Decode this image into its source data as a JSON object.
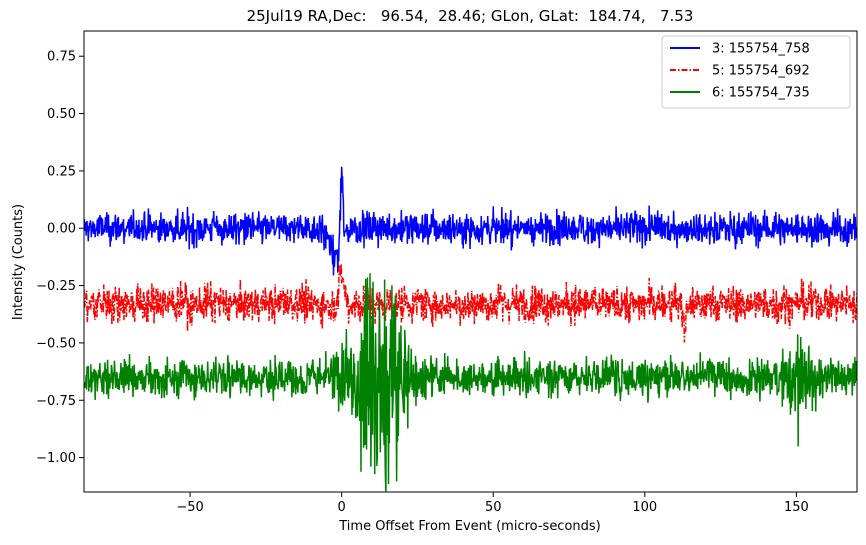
{
  "chart_data": {
    "type": "line",
    "title": "25Jul19 RA,Dec:   96.54,  28.46; GLon, GLat:  184.74,   7.53",
    "xlabel": "Time Offset From Event (micro-seconds)",
    "ylabel": "Intensity (Counts)",
    "xlim": [
      -85,
      170
    ],
    "ylim": [
      -1.15,
      0.86
    ],
    "xticks": [
      -50,
      0,
      50,
      100,
      150
    ],
    "xtick_labels": [
      "−50",
      "0",
      "50",
      "100",
      "150"
    ],
    "yticks": [
      0.75,
      0.5,
      0.25,
      0.0,
      -0.25,
      -0.5,
      -0.75,
      -1.0
    ],
    "ytick_labels": [
      "0.75",
      "0.50",
      "0.25",
      "0.00",
      "−0.25",
      "−0.50",
      "−0.75",
      "−1.00"
    ],
    "legend_position": "top-right",
    "series": [
      {
        "name": "3: 155754_758",
        "color": "#0000ff",
        "style": "solid",
        "baseline": 0.0,
        "noise_amplitude": 0.035,
        "features": [
          {
            "x": 0.0,
            "width": 0.6,
            "amplitude": 0.36
          },
          {
            "x": -2.0,
            "width": 2.5,
            "amplitude": -0.18
          }
        ]
      },
      {
        "name": "5: 155754_692",
        "color": "#ff0000",
        "style": "dashdot",
        "baseline": -0.33,
        "noise_amplitude": 0.04,
        "features": [
          {
            "x": 0.0,
            "width": 1.0,
            "amplitude": 0.19
          },
          {
            "x": 113.0,
            "width": 0.6,
            "amplitude": -0.15
          }
        ]
      },
      {
        "name": "6: 155754_735",
        "color": "#008000",
        "style": "solid",
        "baseline": -0.65,
        "noise_amplitude": 0.04,
        "features": [
          {
            "x": 12.0,
            "width": 10.0,
            "amplitude": 0.3
          },
          {
            "x": 150.0,
            "width": 6.0,
            "amplitude": 0.12
          }
        ]
      }
    ]
  }
}
